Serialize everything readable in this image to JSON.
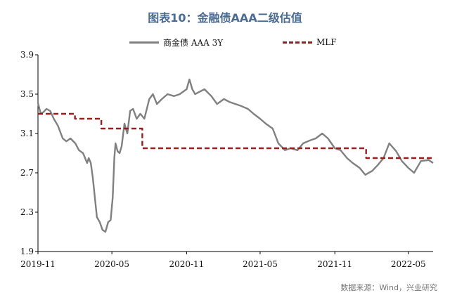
{
  "title": "图表10：金融债AAA二级估值",
  "source": "数据来源：Wind，兴业研究",
  "colors": {
    "series1": "#808080",
    "series2": "#9b1c1c",
    "title": "#4a6b93"
  },
  "chart_data": {
    "type": "line",
    "title": "图表10：金融债AAA二级估值",
    "ylim": [
      1.9,
      3.9
    ],
    "yticks": [
      "1.9",
      "2.3",
      "2.7",
      "3.1",
      "3.5",
      "3.9"
    ],
    "xlim": [
      "2019-11-01",
      "2022-07-01"
    ],
    "xticks": [
      {
        "label": "2019-11",
        "date": "2019-11-01"
      },
      {
        "label": "2020-05",
        "date": "2020-05-01"
      },
      {
        "label": "2020-11",
        "date": "2020-11-01"
      },
      {
        "label": "2021-05",
        "date": "2021-05-01"
      },
      {
        "label": "2021-11",
        "date": "2021-11-01"
      },
      {
        "label": "2022-05",
        "date": "2022-05-01"
      }
    ],
    "legend_position": "top",
    "grid": false,
    "series": [
      {
        "name": "商金债 AAA 3Y",
        "style": "solid",
        "points": [
          [
            "2019-11-01",
            3.41
          ],
          [
            "2019-11-08",
            3.3
          ],
          [
            "2019-11-15",
            3.32
          ],
          [
            "2019-11-22",
            3.35
          ],
          [
            "2019-12-01",
            3.33
          ],
          [
            "2019-12-10",
            3.25
          ],
          [
            "2019-12-20",
            3.18
          ],
          [
            "2020-01-01",
            3.05
          ],
          [
            "2020-01-10",
            3.02
          ],
          [
            "2020-01-20",
            3.05
          ],
          [
            "2020-02-01",
            3.0
          ],
          [
            "2020-02-10",
            2.93
          ],
          [
            "2020-02-20",
            2.9
          ],
          [
            "2020-03-01",
            2.8
          ],
          [
            "2020-03-05",
            2.85
          ],
          [
            "2020-03-10",
            2.8
          ],
          [
            "2020-03-15",
            2.65
          ],
          [
            "2020-03-20",
            2.45
          ],
          [
            "2020-03-25",
            2.25
          ],
          [
            "2020-04-01",
            2.2
          ],
          [
            "2020-04-08",
            2.12
          ],
          [
            "2020-04-15",
            2.1
          ],
          [
            "2020-04-22",
            2.2
          ],
          [
            "2020-04-28",
            2.22
          ],
          [
            "2020-05-03",
            2.45
          ],
          [
            "2020-05-07",
            2.85
          ],
          [
            "2020-05-10",
            3.0
          ],
          [
            "2020-05-15",
            2.92
          ],
          [
            "2020-05-20",
            2.9
          ],
          [
            "2020-05-25",
            2.97
          ],
          [
            "2020-06-01",
            3.2
          ],
          [
            "2020-06-08",
            3.1
          ],
          [
            "2020-06-15",
            3.33
          ],
          [
            "2020-06-22",
            3.35
          ],
          [
            "2020-07-01",
            3.25
          ],
          [
            "2020-07-10",
            3.3
          ],
          [
            "2020-07-20",
            3.25
          ],
          [
            "2020-08-01",
            3.45
          ],
          [
            "2020-08-10",
            3.5
          ],
          [
            "2020-08-20",
            3.4
          ],
          [
            "2020-09-01",
            3.45
          ],
          [
            "2020-09-15",
            3.5
          ],
          [
            "2020-10-01",
            3.48
          ],
          [
            "2020-10-15",
            3.5
          ],
          [
            "2020-11-01",
            3.55
          ],
          [
            "2020-11-08",
            3.65
          ],
          [
            "2020-11-15",
            3.55
          ],
          [
            "2020-11-22",
            3.5
          ],
          [
            "2020-12-01",
            3.52
          ],
          [
            "2020-12-15",
            3.55
          ],
          [
            "2021-01-01",
            3.48
          ],
          [
            "2021-01-15",
            3.4
          ],
          [
            "2021-02-01",
            3.45
          ],
          [
            "2021-02-15",
            3.42
          ],
          [
            "2021-03-01",
            3.4
          ],
          [
            "2021-03-15",
            3.38
          ],
          [
            "2021-04-01",
            3.35
          ],
          [
            "2021-04-15",
            3.3
          ],
          [
            "2021-05-01",
            3.25
          ],
          [
            "2021-05-15",
            3.2
          ],
          [
            "2021-06-01",
            3.15
          ],
          [
            "2021-06-15",
            3.0
          ],
          [
            "2021-07-01",
            2.93
          ],
          [
            "2021-07-15",
            2.95
          ],
          [
            "2021-08-01",
            2.93
          ],
          [
            "2021-08-15",
            3.0
          ],
          [
            "2021-09-01",
            3.03
          ],
          [
            "2021-09-15",
            3.05
          ],
          [
            "2021-10-01",
            3.1
          ],
          [
            "2021-10-15",
            3.05
          ],
          [
            "2021-11-01",
            2.95
          ],
          [
            "2021-11-15",
            2.93
          ],
          [
            "2021-12-01",
            2.85
          ],
          [
            "2021-12-15",
            2.8
          ],
          [
            "2022-01-01",
            2.75
          ],
          [
            "2022-01-15",
            2.68
          ],
          [
            "2022-02-01",
            2.72
          ],
          [
            "2022-02-15",
            2.78
          ],
          [
            "2022-03-01",
            2.85
          ],
          [
            "2022-03-15",
            3.0
          ],
          [
            "2022-04-01",
            2.92
          ],
          [
            "2022-04-15",
            2.82
          ],
          [
            "2022-05-01",
            2.75
          ],
          [
            "2022-05-15",
            2.7
          ],
          [
            "2022-06-01",
            2.82
          ],
          [
            "2022-06-20",
            2.83
          ],
          [
            "2022-07-01",
            2.8
          ]
        ]
      },
      {
        "name": "MLF",
        "style": "dashed",
        "points": [
          [
            "2019-11-01",
            3.3
          ],
          [
            "2020-01-31",
            3.3
          ],
          [
            "2020-01-31",
            3.25
          ],
          [
            "2020-04-05",
            3.25
          ],
          [
            "2020-04-05",
            3.15
          ],
          [
            "2020-07-15",
            3.15
          ],
          [
            "2020-07-15",
            2.95
          ],
          [
            "2022-01-17",
            2.95
          ],
          [
            "2022-01-17",
            2.85
          ],
          [
            "2022-07-01",
            2.85
          ]
        ]
      }
    ]
  }
}
